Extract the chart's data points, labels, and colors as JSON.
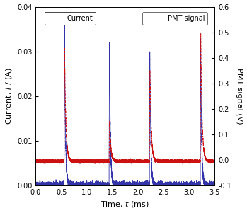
{
  "title": "",
  "xlabel": "Time, $t$ (ms)",
  "ylabel_left": "Current, $I$ / (A)",
  "ylabel_right": "PMT signal (V)",
  "xlim": [
    0,
    3.5
  ],
  "ylim_left": [
    0,
    0.04
  ],
  "ylim_right": [
    -0.1,
    0.6
  ],
  "yticks_left": [
    0,
    0.01,
    0.02,
    0.03,
    0.04
  ],
  "yticks_right": [
    -0.1,
    0,
    0.1,
    0.2,
    0.3,
    0.4,
    0.5,
    0.6
  ],
  "xticks": [
    0,
    0.5,
    1.0,
    1.5,
    2.0,
    2.5,
    3.0,
    3.5
  ],
  "current_color": "#3333aa",
  "pmt_color": "#cc1111",
  "pulse_times": [
    0.555,
    1.435,
    2.225,
    3.22
  ],
  "current_peaks": [
    0.0355,
    0.032,
    0.03,
    0.033
  ],
  "pmt_peaks": [
    0.44,
    0.155,
    0.36,
    0.5
  ],
  "current_rise": 0.008,
  "current_fall": 0.018,
  "pmt_rise": 0.01,
  "pmt_fall": 0.025,
  "noise_std_current": 0.00035,
  "noise_std_pmt": 0.003,
  "pmt_base": -0.005,
  "legend_current": "Current",
  "legend_pmt": "PMT signal"
}
